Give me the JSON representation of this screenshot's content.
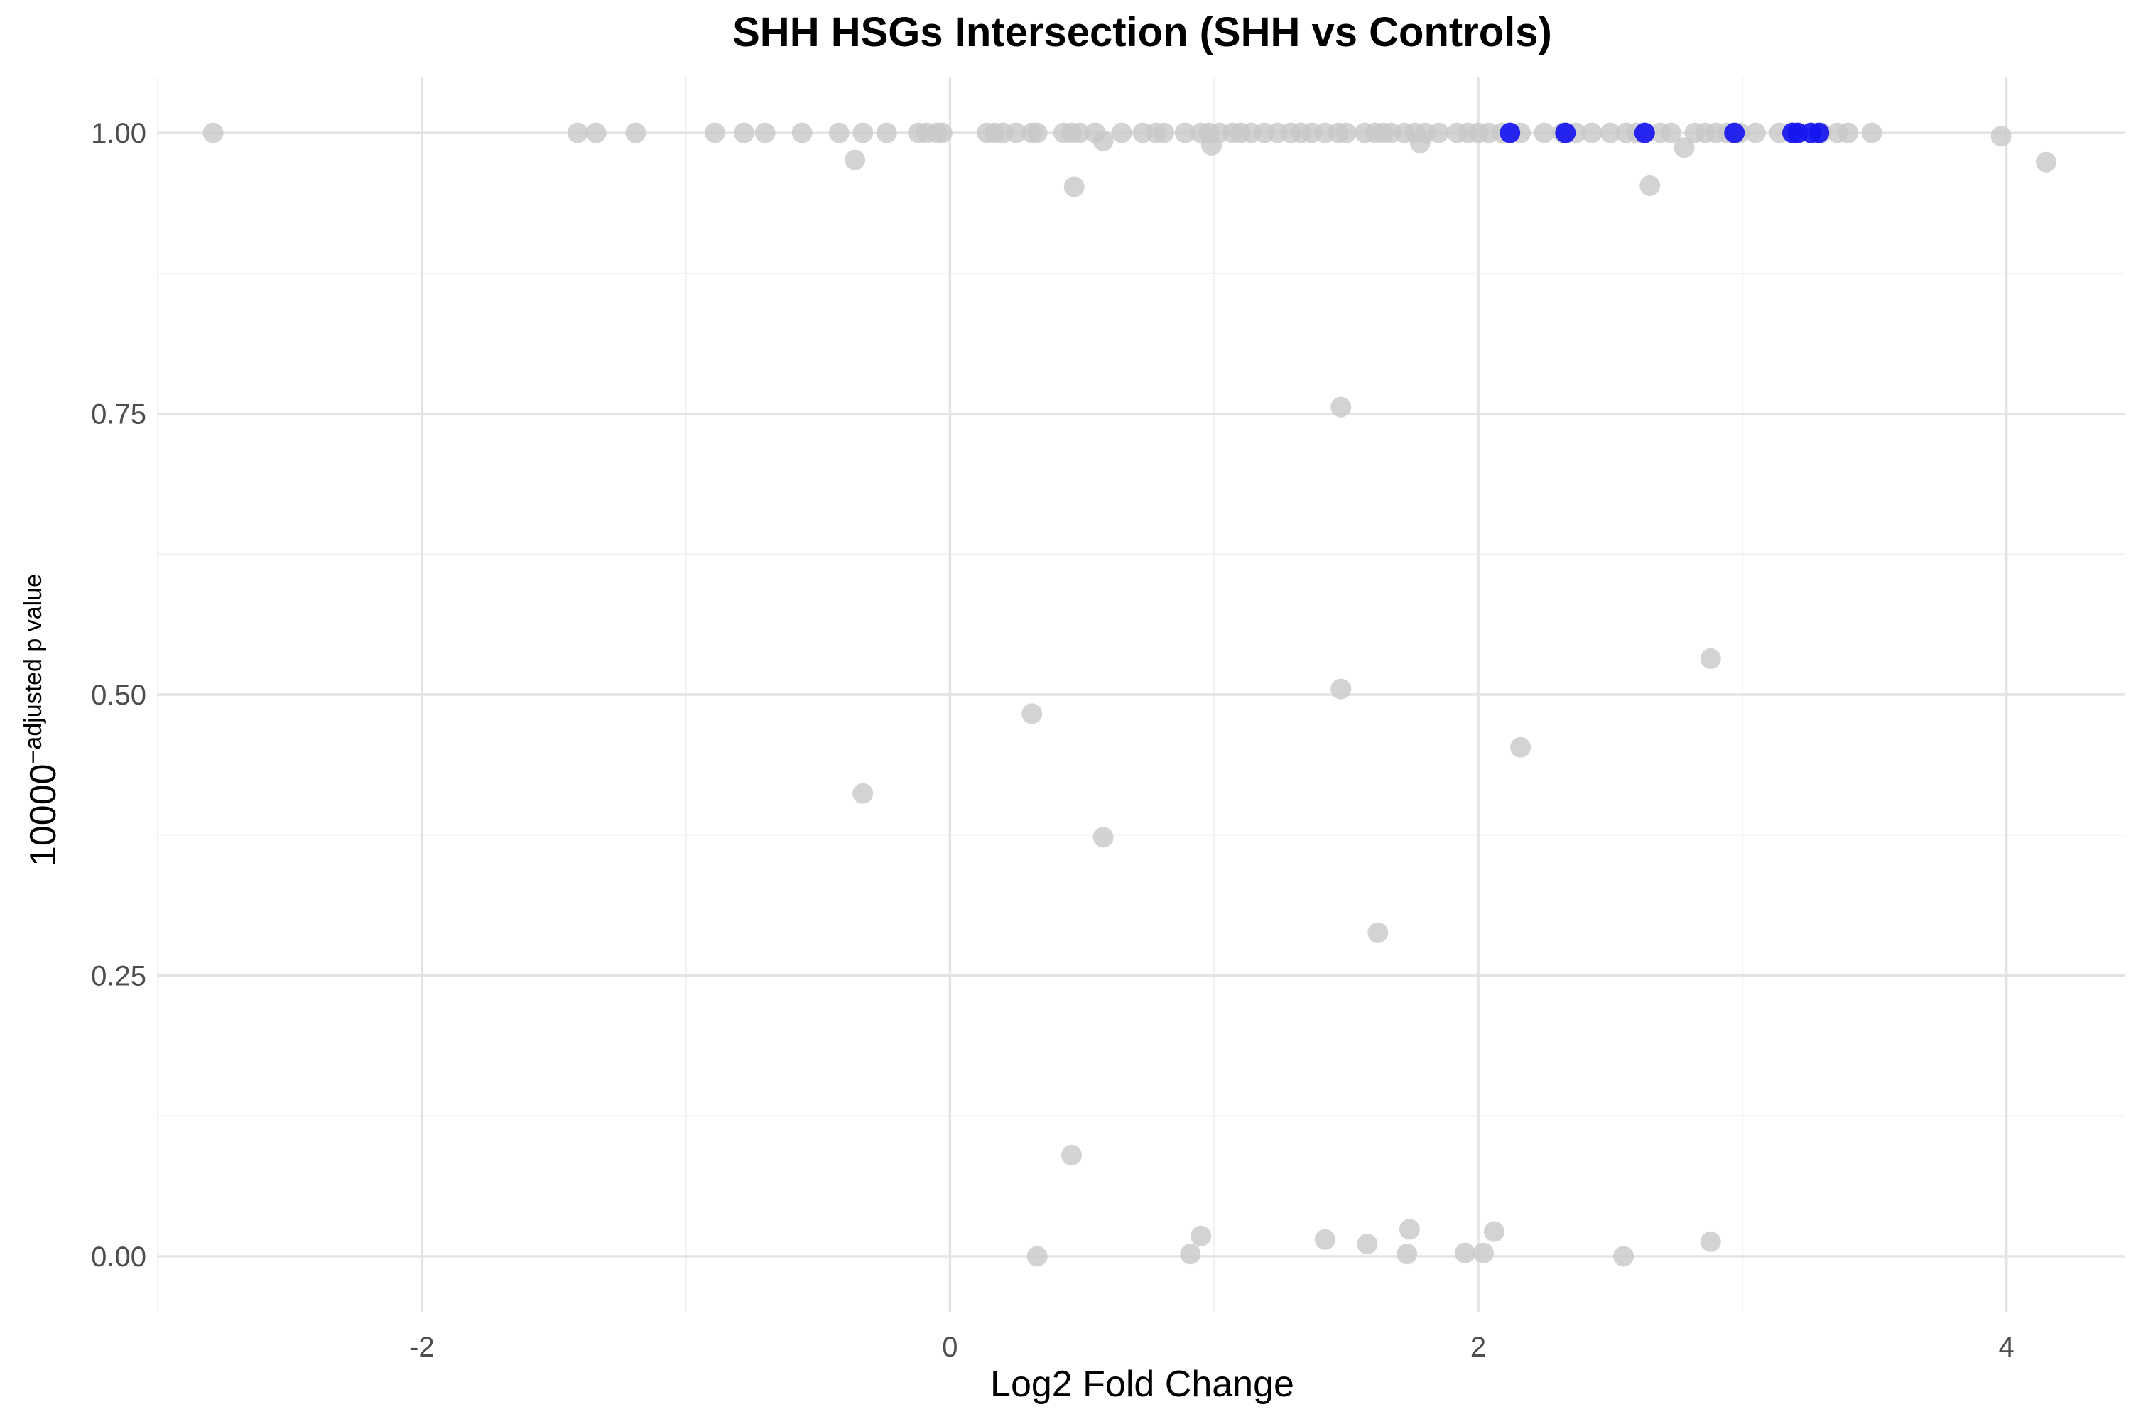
{
  "chart_data": {
    "type": "scatter",
    "title": "SHH HSGs Intersection (SHH vs Controls)",
    "xlabel": "Log2 Fold Change",
    "ylabel": {
      "base": "10000",
      "superscript": "−adjusted p value"
    },
    "xlim": [
      -3.0,
      4.45
    ],
    "ylim": [
      -0.05,
      1.05
    ],
    "x_ticks": [
      {
        "value": -2,
        "label": "-2"
      },
      {
        "value": 0,
        "label": "0"
      },
      {
        "value": 2,
        "label": "2"
      },
      {
        "value": 4,
        "label": "4"
      }
    ],
    "x_minor": [
      -3,
      -1,
      1,
      3
    ],
    "y_ticks": [
      {
        "value": 0,
        "label": "0.00"
      },
      {
        "value": 0.25,
        "label": "0.25"
      },
      {
        "value": 0.5,
        "label": "0.50"
      },
      {
        "value": 0.75,
        "label": "0.75"
      },
      {
        "value": 1,
        "label": "1.00"
      }
    ],
    "y_minor": [
      0.125,
      0.375,
      0.625,
      0.875
    ],
    "grid": true,
    "legend": "none",
    "colors": {
      "background": "#ffffff",
      "point": "#c8c8c8",
      "highlight": "#1515f0"
    },
    "series": [
      {
        "color": "#c8c8c8",
        "points": [
          [
            -2.79,
            1.0
          ],
          [
            -1.41,
            1.0
          ],
          [
            -1.34,
            1.0
          ],
          [
            -1.19,
            1.0
          ],
          [
            -0.89,
            1.0
          ],
          [
            -0.78,
            1.0
          ],
          [
            -0.7,
            1.0
          ],
          [
            -0.56,
            1.0
          ],
          [
            -0.42,
            1.0
          ],
          [
            -0.36,
            0.976
          ],
          [
            -0.33,
            1.0
          ],
          [
            -0.24,
            1.0
          ],
          [
            -0.12,
            1.0
          ],
          [
            -0.09,
            1.0
          ],
          [
            -0.05,
            1.0
          ],
          [
            -0.03,
            1.0
          ],
          [
            0.14,
            1.0
          ],
          [
            0.17,
            1.0
          ],
          [
            0.2,
            1.0
          ],
          [
            0.25,
            1.0
          ],
          [
            0.31,
            1.0
          ],
          [
            0.33,
            1.0
          ],
          [
            0.43,
            1.0
          ],
          [
            0.46,
            1.0
          ],
          [
            0.49,
            1.0
          ],
          [
            0.47,
            0.952
          ],
          [
            0.55,
            1.0
          ],
          [
            0.58,
            0.993
          ],
          [
            0.65,
            1.0
          ],
          [
            0.73,
            1.0
          ],
          [
            0.78,
            1.0
          ],
          [
            0.81,
            1.0
          ],
          [
            0.89,
            1.0
          ],
          [
            0.95,
            1.0
          ],
          [
            0.98,
            1.0
          ],
          [
            0.99,
            0.989
          ],
          [
            1.02,
            1.0
          ],
          [
            1.07,
            1.0
          ],
          [
            1.1,
            1.0
          ],
          [
            1.14,
            1.0
          ],
          [
            1.19,
            1.0
          ],
          [
            1.24,
            1.0
          ],
          [
            1.29,
            1.0
          ],
          [
            1.33,
            1.0
          ],
          [
            1.37,
            1.0
          ],
          [
            1.42,
            1.0
          ],
          [
            1.47,
            1.0
          ],
          [
            1.5,
            1.0
          ],
          [
            1.57,
            1.0
          ],
          [
            1.61,
            1.0
          ],
          [
            1.64,
            1.0
          ],
          [
            1.67,
            1.0
          ],
          [
            1.72,
            1.0
          ],
          [
            1.76,
            1.0
          ],
          [
            1.78,
            0.991
          ],
          [
            1.8,
            1.0
          ],
          [
            1.85,
            1.0
          ],
          [
            1.92,
            1.0
          ],
          [
            1.96,
            1.0
          ],
          [
            2.0,
            1.0
          ],
          [
            2.04,
            1.0
          ],
          [
            2.09,
            1.0
          ],
          [
            2.16,
            1.0
          ],
          [
            2.25,
            1.0
          ],
          [
            2.32,
            1.0
          ],
          [
            2.37,
            1.0
          ],
          [
            2.43,
            1.0
          ],
          [
            2.5,
            1.0
          ],
          [
            2.56,
            1.0
          ],
          [
            2.6,
            1.0
          ],
          [
            2.65,
            0.953
          ],
          [
            2.69,
            1.0
          ],
          [
            2.73,
            1.0
          ],
          [
            2.78,
            0.987
          ],
          [
            2.82,
            1.0
          ],
          [
            2.86,
            1.0
          ],
          [
            2.9,
            1.0
          ],
          [
            2.94,
            1.0
          ],
          [
            2.99,
            1.0
          ],
          [
            3.05,
            1.0
          ],
          [
            3.14,
            1.0
          ],
          [
            3.3,
            1.0
          ],
          [
            3.36,
            1.0
          ],
          [
            3.4,
            1.0
          ],
          [
            3.49,
            1.0
          ],
          [
            3.98,
            0.997
          ],
          [
            4.15,
            0.974
          ],
          [
            1.48,
            0.756
          ],
          [
            1.48,
            0.505
          ],
          [
            2.88,
            0.532
          ],
          [
            0.31,
            0.483
          ],
          [
            2.16,
            0.453
          ],
          [
            -0.33,
            0.412
          ],
          [
            0.58,
            0.373
          ],
          [
            1.62,
            0.288
          ],
          [
            0.46,
            0.09
          ],
          [
            0.33,
            0.0
          ],
          [
            0.91,
            0.002
          ],
          [
            0.95,
            0.018
          ],
          [
            1.42,
            0.015
          ],
          [
            1.58,
            0.011
          ],
          [
            1.74,
            0.024
          ],
          [
            1.73,
            0.002
          ],
          [
            1.95,
            0.003
          ],
          [
            2.02,
            0.003
          ],
          [
            2.06,
            0.022
          ],
          [
            2.55,
            0.0
          ],
          [
            2.88,
            0.013
          ]
        ]
      },
      {
        "color": "#1515f0",
        "points": [
          [
            2.12,
            1.0
          ],
          [
            2.33,
            1.0
          ],
          [
            2.63,
            1.0
          ],
          [
            2.97,
            1.0
          ],
          [
            3.19,
            1.0
          ],
          [
            3.21,
            1.0
          ],
          [
            3.26,
            1.0
          ],
          [
            3.29,
            1.0
          ]
        ]
      }
    ]
  }
}
